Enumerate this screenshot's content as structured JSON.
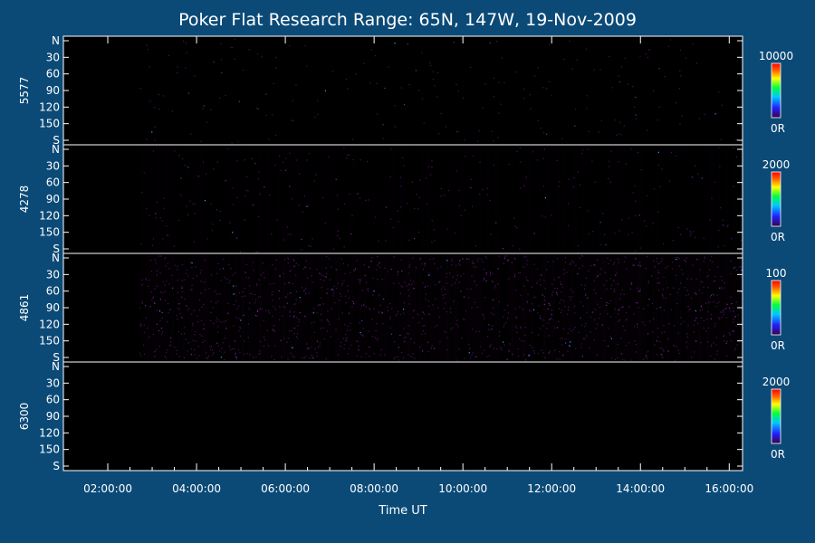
{
  "title": "Poker Flat Research Range: 65N, 147W, 19-Nov-2009",
  "chart_data": {
    "type": "heatmap",
    "title": "Poker Flat Research Range: 65N, 147W, 19-Nov-2009",
    "xlabel": "Time UT",
    "x_ticks": [
      "02:00:00",
      "04:00:00",
      "06:00:00",
      "08:00:00",
      "10:00:00",
      "12:00:00",
      "14:00:00",
      "16:00:00"
    ],
    "x_range_hours": [
      1.0,
      16.3
    ],
    "data_start_hour": 2.7,
    "y_ticks": [
      "N",
      "30",
      "60",
      "90",
      "120",
      "150",
      "S"
    ],
    "y_range": [
      0,
      180
    ],
    "colormap": [
      "#3a004a",
      "#2020ff",
      "#00c8ff",
      "#00ff40",
      "#ffff00",
      "#ff6000",
      "#ff0000"
    ],
    "panels": [
      {
        "label": "5577",
        "cb_max": "10000",
        "cb_min": "0R",
        "intensity": 0.08
      },
      {
        "label": "4278",
        "cb_max": "2000",
        "cb_min": "0R",
        "intensity": 0.12
      },
      {
        "label": "4861",
        "cb_max": "100",
        "cb_min": "0R",
        "intensity": 0.55
      },
      {
        "label": "6300",
        "cb_max": "2000",
        "cb_min": "0R",
        "intensity": 0.0
      }
    ]
  }
}
